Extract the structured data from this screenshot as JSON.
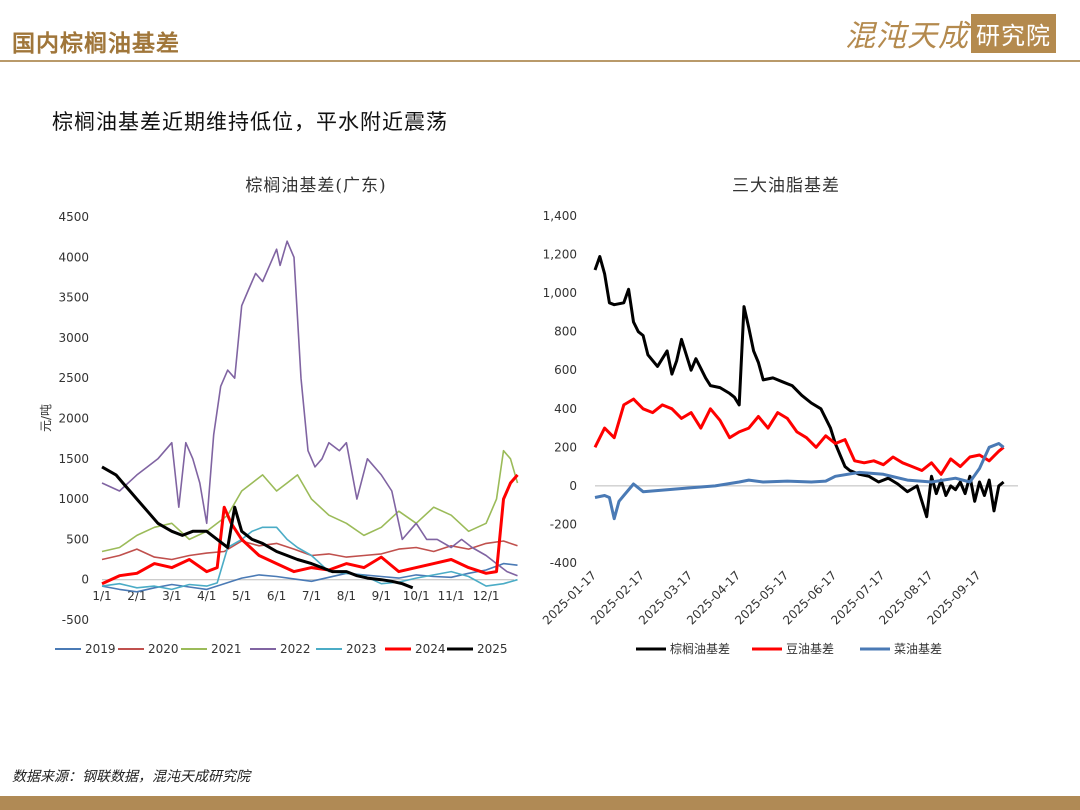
{
  "header": {
    "title": "国内棕榈油基差"
  },
  "logo": {
    "script": "混沌天成",
    "box": "研究院"
  },
  "subtitle": "棕榈油基差近期维持低位，平水附近震荡",
  "source": "数据来源：钢联数据，混沌天成研究院",
  "chart_data": [
    {
      "type": "line",
      "title": "棕榈油基差(广东)",
      "ylabel": "元/吨",
      "ylim": [
        -500,
        4500
      ],
      "yticks": [
        -500,
        0,
        500,
        1000,
        1500,
        2000,
        2500,
        3000,
        3500,
        4000,
        4500
      ],
      "xticks": [
        "1/1",
        "2/1",
        "3/1",
        "4/1",
        "5/1",
        "6/1",
        "7/1",
        "8/1",
        "9/1",
        "10/1",
        "11/1",
        "12/1"
      ],
      "xlim": [
        1,
        12.8
      ],
      "legend_position": "bottom",
      "series": [
        {
          "name": "2019",
          "color": "#4a7ab5",
          "x": [
            1,
            1.5,
            2,
            2.5,
            3,
            3.5,
            4,
            4.5,
            5,
            5.5,
            6,
            6.5,
            7,
            7.5,
            8,
            8.5,
            9,
            9.5,
            10,
            10.5,
            11,
            11.5,
            12,
            12.5,
            12.9
          ],
          "values": [
            -80,
            -120,
            -150,
            -100,
            -60,
            -90,
            -120,
            -50,
            20,
            60,
            40,
            10,
            -20,
            30,
            80,
            60,
            40,
            20,
            60,
            40,
            30,
            80,
            120,
            200,
            180
          ]
        },
        {
          "name": "2020",
          "color": "#c0504d",
          "x": [
            1,
            1.5,
            2,
            2.5,
            3,
            3.5,
            4,
            4.5,
            5,
            5.5,
            6,
            6.5,
            7,
            7.5,
            8,
            8.5,
            9,
            9.5,
            10,
            10.5,
            11,
            11.5,
            12,
            12.5,
            12.9
          ],
          "values": [
            250,
            300,
            380,
            280,
            250,
            300,
            330,
            350,
            480,
            420,
            450,
            380,
            300,
            320,
            280,
            300,
            320,
            380,
            400,
            350,
            420,
            380,
            450,
            480,
            420
          ]
        },
        {
          "name": "2021",
          "color": "#9bbb59",
          "x": [
            1,
            1.5,
            2,
            2.5,
            3,
            3.5,
            4,
            4.3,
            4.6,
            5,
            5.3,
            5.6,
            6,
            6.3,
            6.6,
            7,
            7.5,
            8,
            8.5,
            9,
            9.5,
            10,
            10.5,
            11,
            11.5,
            12,
            12.3,
            12.5,
            12.7,
            12.9
          ],
          "values": [
            350,
            400,
            550,
            650,
            700,
            500,
            600,
            700,
            800,
            1100,
            1200,
            1300,
            1100,
            1200,
            1300,
            1000,
            800,
            700,
            550,
            650,
            850,
            700,
            900,
            800,
            600,
            700,
            1000,
            1600,
            1500,
            1200
          ]
        },
        {
          "name": "2022",
          "color": "#8064a2",
          "x": [
            1,
            1.5,
            2,
            2.3,
            2.6,
            3,
            3.2,
            3.4,
            3.6,
            3.8,
            4,
            4.2,
            4.4,
            4.6,
            4.8,
            5,
            5.2,
            5.4,
            5.6,
            5.8,
            6,
            6.1,
            6.3,
            6.5,
            6.7,
            6.9,
            7.1,
            7.3,
            7.5,
            7.8,
            8,
            8.3,
            8.6,
            9,
            9.3,
            9.6,
            10,
            10.3,
            10.6,
            11,
            11.3,
            11.6,
            12,
            12.3,
            12.6,
            12.9
          ],
          "values": [
            1200,
            1100,
            1300,
            1400,
            1500,
            1700,
            900,
            1700,
            1500,
            1200,
            700,
            1800,
            2400,
            2600,
            2500,
            3400,
            3600,
            3800,
            3700,
            3900,
            4100,
            3900,
            4200,
            4000,
            2500,
            1600,
            1400,
            1500,
            1700,
            1600,
            1700,
            1000,
            1500,
            1300,
            1100,
            500,
            700,
            500,
            500,
            400,
            500,
            400,
            300,
            200,
            100,
            50
          ]
        },
        {
          "name": "2023",
          "color": "#4bacc6",
          "x": [
            1,
            1.5,
            2,
            2.5,
            3,
            3.5,
            4,
            4.3,
            4.6,
            5,
            5.3,
            5.6,
            6,
            6.3,
            6.6,
            7,
            7.5,
            8,
            8.5,
            9,
            9.5,
            10,
            10.5,
            11,
            11.5,
            12,
            12.5,
            12.9
          ],
          "values": [
            -80,
            -50,
            -100,
            -80,
            -120,
            -60,
            -80,
            -40,
            400,
            500,
            600,
            650,
            650,
            500,
            400,
            300,
            100,
            80,
            50,
            -50,
            -30,
            20,
            60,
            100,
            40,
            -80,
            -50,
            0
          ]
        },
        {
          "name": "2024",
          "color": "#ff0000",
          "x": [
            1,
            1.5,
            2,
            2.5,
            3,
            3.5,
            4,
            4.3,
            4.5,
            4.7,
            5,
            5.5,
            6,
            6.5,
            7,
            7.5,
            8,
            8.5,
            9,
            9.5,
            10,
            10.5,
            11,
            11.5,
            12,
            12.3,
            12.5,
            12.7,
            12.9
          ],
          "values": [
            -50,
            50,
            80,
            200,
            150,
            250,
            100,
            150,
            900,
            700,
            500,
            300,
            200,
            100,
            150,
            120,
            200,
            150,
            280,
            100,
            150,
            200,
            250,
            150,
            80,
            100,
            1000,
            1200,
            1300
          ],
          "bold": true
        },
        {
          "name": "2025",
          "color": "#000000",
          "x": [
            1,
            1.2,
            1.4,
            1.6,
            1.8,
            2,
            2.3,
            2.6,
            3,
            3.3,
            3.6,
            4,
            4.3,
            4.6,
            4.8,
            5,
            5.3,
            5.6,
            6,
            6.3,
            6.6,
            7,
            7.3,
            7.6,
            8,
            8.3,
            8.6,
            9,
            9.3,
            9.6,
            9.9
          ],
          "values": [
            1400,
            1350,
            1300,
            1200,
            1100,
            1000,
            850,
            700,
            600,
            550,
            600,
            600,
            500,
            400,
            900,
            600,
            500,
            450,
            350,
            300,
            250,
            200,
            150,
            100,
            100,
            50,
            20,
            0,
            -20,
            -50,
            -100
          ],
          "bold": true
        }
      ]
    },
    {
      "type": "line",
      "title": "三大油脂基差",
      "ylim": [
        -400,
        1400
      ],
      "yticks": [
        "-400",
        "-200",
        "0",
        "200",
        "400",
        "600",
        "800",
        "1,000",
        "1,200",
        "1,400"
      ],
      "xticks": [
        "2025-01-17",
        "2025-02-17",
        "2025-03-17",
        "2025-04-17",
        "2025-05-17",
        "2025-06-17",
        "2025-07-17",
        "2025-08-17",
        "2025-09-17"
      ],
      "xlim": [
        0,
        8.8
      ],
      "legend_position": "bottom",
      "series": [
        {
          "name": "棕榈油基差",
          "color": "#000000",
          "x": [
            0,
            0.1,
            0.2,
            0.3,
            0.4,
            0.6,
            0.7,
            0.8,
            0.9,
            1.0,
            1.1,
            1.3,
            1.5,
            1.6,
            1.7,
            1.8,
            2.0,
            2.1,
            2.2,
            2.3,
            2.4,
            2.6,
            2.8,
            2.9,
            3.0,
            3.1,
            3.2,
            3.3,
            3.4,
            3.5,
            3.7,
            3.9,
            4.1,
            4.3,
            4.5,
            4.7,
            4.9,
            5.0,
            5.1,
            5.2,
            5.3,
            5.5,
            5.7,
            5.9,
            6.1,
            6.3,
            6.5,
            6.7,
            6.9,
            7.0,
            7.1,
            7.2,
            7.3,
            7.4,
            7.5,
            7.6,
            7.7,
            7.8,
            7.9,
            8.0,
            8.1,
            8.2,
            8.3,
            8.4,
            8.5
          ],
          "values": [
            1120,
            1190,
            1100,
            950,
            940,
            950,
            1020,
            850,
            800,
            780,
            680,
            620,
            700,
            580,
            650,
            760,
            600,
            660,
            610,
            560,
            520,
            510,
            480,
            460,
            420,
            930,
            820,
            700,
            640,
            550,
            560,
            540,
            520,
            470,
            430,
            400,
            300,
            220,
            160,
            100,
            80,
            60,
            50,
            20,
            40,
            10,
            -30,
            0,
            -160,
            50,
            -40,
            30,
            -50,
            0,
            -20,
            20,
            -40,
            50,
            -80,
            20,
            -50,
            30,
            -130,
            0,
            20
          ]
        },
        {
          "name": "豆油基差",
          "color": "#ff0000",
          "x": [
            0,
            0.2,
            0.4,
            0.6,
            0.8,
            1.0,
            1.2,
            1.4,
            1.6,
            1.8,
            2.0,
            2.2,
            2.4,
            2.6,
            2.8,
            3.0,
            3.2,
            3.4,
            3.6,
            3.8,
            4.0,
            4.2,
            4.4,
            4.6,
            4.8,
            5.0,
            5.2,
            5.4,
            5.6,
            5.8,
            6.0,
            6.2,
            6.4,
            6.6,
            6.8,
            7.0,
            7.2,
            7.4,
            7.6,
            7.8,
            8.0,
            8.2,
            8.4,
            8.5
          ],
          "values": [
            200,
            300,
            250,
            420,
            450,
            400,
            380,
            420,
            400,
            350,
            380,
            300,
            400,
            340,
            250,
            280,
            300,
            360,
            300,
            380,
            350,
            280,
            250,
            200,
            260,
            220,
            240,
            130,
            120,
            130,
            110,
            150,
            120,
            100,
            80,
            120,
            60,
            140,
            100,
            150,
            160,
            130,
            180,
            200
          ]
        },
        {
          "name": "菜油基差",
          "color": "#4a7ab5",
          "x": [
            0,
            0.2,
            0.3,
            0.4,
            0.5,
            0.6,
            0.8,
            1.0,
            1.5,
            2.0,
            2.5,
            3.0,
            3.2,
            3.5,
            4.0,
            4.5,
            4.8,
            5.0,
            5.5,
            6.0,
            6.5,
            7.0,
            7.5,
            7.8,
            8.0,
            8.2,
            8.4,
            8.5
          ],
          "values": [
            -60,
            -50,
            -60,
            -170,
            -80,
            -50,
            10,
            -30,
            -20,
            -10,
            0,
            20,
            30,
            20,
            25,
            20,
            25,
            50,
            70,
            60,
            30,
            20,
            40,
            20,
            90,
            200,
            220,
            200
          ]
        }
      ]
    }
  ]
}
